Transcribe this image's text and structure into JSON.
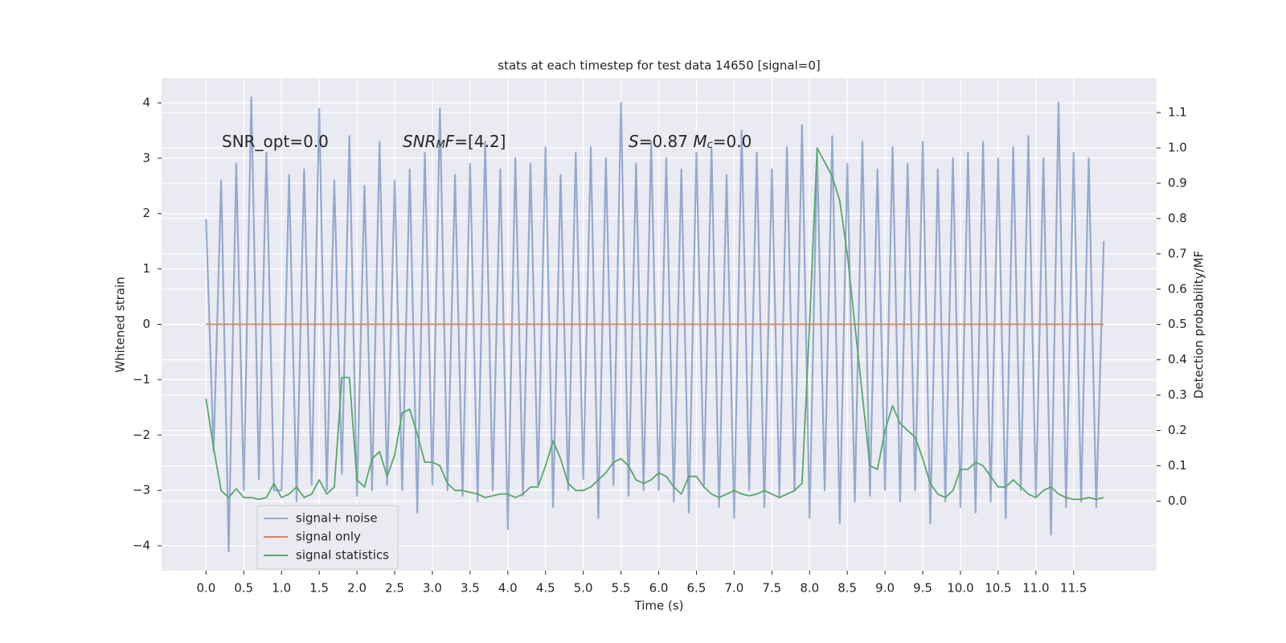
{
  "chart_data": {
    "type": "line",
    "title": "stats at each timestep for test data 14650 [signal=0]",
    "x_label": "Time (s)",
    "y_label": "Whitened strain",
    "y2_label": "Detection probability/MF",
    "xlim": [
      -0.59,
      12.6
    ],
    "ylim": [
      -4.45,
      4.45
    ],
    "y2lim": [
      -0.197,
      1.198
    ],
    "xticks": [
      {
        "value": 0,
        "label": "0.0"
      },
      0.5,
      {
        "value": 1,
        "label": "1.0"
      },
      1.5,
      {
        "value": 2,
        "label": "2.0"
      },
      2.5,
      {
        "value": 3,
        "label": "3.0"
      },
      3.5,
      {
        "value": 4,
        "label": "4.0"
      },
      4.5,
      {
        "value": 5,
        "label": "5.0"
      },
      5.5,
      {
        "value": 6,
        "label": "6.0"
      },
      6.5,
      {
        "value": 7,
        "label": "7.0"
      },
      7.5,
      {
        "value": 8,
        "label": "8.0"
      },
      8.5,
      {
        "value": 9,
        "label": "9.0"
      },
      9.5,
      {
        "value": 10,
        "label": "10.0"
      },
      10.5,
      {
        "value": 11,
        "label": "11.0"
      },
      11.5
    ],
    "yticks": [
      {
        "value": -4,
        "label": "−4"
      },
      {
        "value": -3,
        "label": "−3"
      },
      {
        "value": -2,
        "label": "−2"
      },
      {
        "value": -1,
        "label": "−1"
      },
      0,
      1,
      2,
      3,
      4
    ],
    "y2ticks": [
      {
        "value": 0,
        "label": "0.0"
      },
      0.1,
      0.2,
      0.3,
      0.4,
      0.5,
      0.6,
      0.7,
      0.8,
      0.9,
      {
        "value": 1,
        "label": "1.0"
      },
      1.1
    ],
    "grid": true,
    "legend": "lower left",
    "background": "#eaeaf2",
    "annotations": [
      [
        {
          "text": "SNR_opt=0.0"
        }
      ],
      [
        {
          "text": "SNR",
          "italic": true
        },
        {
          "text": "M",
          "italic": true,
          "sub": true
        },
        {
          "text": "F",
          "italic": true
        },
        {
          "text": "=[4.2]"
        }
      ],
      [
        {
          "text": "S",
          "italic": true
        },
        {
          "text": "=0.87   "
        },
        {
          "text": "M",
          "italic": true
        },
        {
          "text": "c",
          "italic": true,
          "sub": true
        },
        {
          "text": "=0.0"
        }
      ]
    ],
    "x": [
      0.0,
      0.1,
      0.2,
      0.3,
      0.4,
      0.5,
      0.6,
      0.7,
      0.8,
      0.9,
      1.0,
      1.1,
      1.2,
      1.3,
      1.4,
      1.5,
      1.6,
      1.7,
      1.8,
      1.9,
      2.0,
      2.1,
      2.2,
      2.3,
      2.4,
      2.5,
      2.6,
      2.7,
      2.8,
      2.9,
      3.0,
      3.1,
      3.2,
      3.3,
      3.4,
      3.5,
      3.6,
      3.7,
      3.8,
      3.9,
      4.0,
      4.1,
      4.2,
      4.3,
      4.4,
      4.5,
      4.6,
      4.7,
      4.8,
      4.9,
      5.0,
      5.1,
      5.2,
      5.3,
      5.4,
      5.5,
      5.6,
      5.7,
      5.8,
      5.9,
      6.0,
      6.1,
      6.2,
      6.3,
      6.4,
      6.5,
      6.6,
      6.7,
      6.8,
      6.9,
      7.0,
      7.1,
      7.2,
      7.3,
      7.4,
      7.5,
      7.6,
      7.7,
      7.8,
      7.9,
      8.0,
      8.1,
      8.2,
      8.3,
      8.4,
      8.5,
      8.6,
      8.7,
      8.8,
      8.9,
      9.0,
      9.1,
      9.2,
      9.3,
      9.4,
      9.5,
      9.6,
      9.7,
      9.8,
      9.9,
      10.0,
      10.1,
      10.2,
      10.3,
      10.4,
      10.5,
      10.6,
      10.7,
      10.8,
      10.9,
      11.0,
      11.1,
      11.2,
      11.3,
      11.4,
      11.5,
      11.6,
      11.7,
      11.8,
      11.9
    ],
    "series": [
      {
        "name": "signal+ noise",
        "color": "#4c72b0",
        "opacity": 0.55,
        "values": [
          1.9,
          -2.3,
          2.6,
          -4.1,
          2.9,
          -3.0,
          4.1,
          -2.8,
          3.1,
          -3.0,
          -3.0,
          2.7,
          -3.2,
          2.8,
          -2.9,
          3.9,
          -3.0,
          2.6,
          -2.7,
          3.4,
          -3.1,
          2.5,
          -3.0,
          3.3,
          -2.9,
          2.6,
          -3.0,
          2.8,
          -3.4,
          3.1,
          -2.9,
          3.9,
          -3.0,
          2.7,
          -3.1,
          2.9,
          -3.2,
          3.3,
          -3.0,
          2.8,
          -3.7,
          3.0,
          -3.1,
          2.9,
          -2.9,
          3.2,
          -3.3,
          2.7,
          -3.0,
          3.1,
          -2.8,
          3.2,
          -3.5,
          3.0,
          -2.9,
          4.0,
          -3.1,
          2.9,
          -3.0,
          3.3,
          -3.0,
          3.0,
          -3.2,
          2.8,
          -3.4,
          3.1,
          -2.9,
          3.2,
          -3.3,
          2.7,
          -3.5,
          3.5,
          -3.0,
          3.1,
          -3.3,
          2.8,
          -3.1,
          3.2,
          -3.0,
          3.6,
          -3.5,
          3.1,
          -3.0,
          3.4,
          -3.6,
          2.9,
          -3.2,
          3.3,
          -3.1,
          2.8,
          -3.0,
          3.2,
          -3.2,
          2.9,
          -3.0,
          3.3,
          -3.6,
          2.8,
          -3.2,
          3.0,
          -3.3,
          3.1,
          -3.4,
          3.3,
          -3.2,
          3.0,
          -3.5,
          3.2,
          -3.0,
          3.4,
          -3.1,
          3.0,
          -3.8,
          4.0,
          -3.3,
          3.1,
          -3.2,
          3.0,
          -3.3,
          1.5
        ]
      },
      {
        "name": "signal only",
        "color": "#dd8452",
        "x": [
          0.0,
          11.9
        ],
        "values": [
          0,
          0
        ]
      },
      {
        "name": "signal statistics",
        "color": "#55a868",
        "axis": "y2",
        "values": [
          0.29,
          0.15,
          0.03,
          0.01,
          0.035,
          0.01,
          0.01,
          0.005,
          0.01,
          0.05,
          0.01,
          0.02,
          0.04,
          0.01,
          0.02,
          0.06,
          0.02,
          0.04,
          0.35,
          0.35,
          0.06,
          0.04,
          0.12,
          0.14,
          0.07,
          0.13,
          0.25,
          0.26,
          0.19,
          0.11,
          0.11,
          0.1,
          0.05,
          0.03,
          0.03,
          0.025,
          0.02,
          0.01,
          0.015,
          0.02,
          0.02,
          0.01,
          0.02,
          0.04,
          0.04,
          0.1,
          0.17,
          0.12,
          0.05,
          0.03,
          0.03,
          0.04,
          0.06,
          0.08,
          0.11,
          0.12,
          0.1,
          0.06,
          0.05,
          0.06,
          0.08,
          0.07,
          0.04,
          0.02,
          0.07,
          0.07,
          0.04,
          0.02,
          0.01,
          0.02,
          0.03,
          0.02,
          0.015,
          0.02,
          0.03,
          0.02,
          0.01,
          0.02,
          0.03,
          0.05,
          0.5,
          1.0,
          0.96,
          0.92,
          0.85,
          0.7,
          0.5,
          0.3,
          0.1,
          0.09,
          0.2,
          0.27,
          0.22,
          0.2,
          0.18,
          0.12,
          0.05,
          0.02,
          0.01,
          0.03,
          0.09,
          0.09,
          0.11,
          0.1,
          0.07,
          0.04,
          0.04,
          0.06,
          0.04,
          0.02,
          0.01,
          0.03,
          0.04,
          0.02,
          0.01,
          0.005,
          0.005,
          0.01,
          0.005,
          0.01
        ]
      }
    ]
  }
}
